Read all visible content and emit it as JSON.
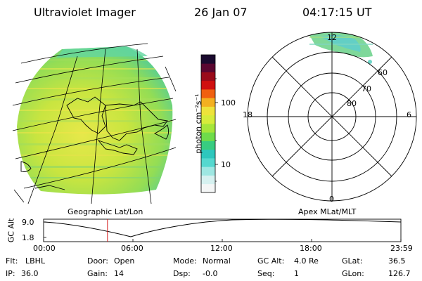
{
  "header": {
    "title": "Ultraviolet Imager",
    "date": "26 Jan 07",
    "time": "04:17:15 UT"
  },
  "left_panel": {
    "label": "Geographic Lat/Lon"
  },
  "colorbar": {
    "unit_label": "photon cm⁻²s⁻¹",
    "tick_labels": [
      "100",
      "10"
    ],
    "colors": [
      "#f4f6f6",
      "#d6f1f0",
      "#9ee7e2",
      "#55d8cf",
      "#2ec7bd",
      "#38cc80",
      "#6fdc4a",
      "#a6e63a",
      "#d6ec3b",
      "#eee33a",
      "#f3b020",
      "#f06010",
      "#d01010",
      "#9a0b1a",
      "#5a0630",
      "#1a0a2e"
    ]
  },
  "right_panel": {
    "label": "Apex MLat/MLT",
    "mlt_labels": {
      "top": "12",
      "left": "18",
      "right": "6",
      "bottom": "0"
    },
    "ring_labels": [
      "60",
      "70",
      "80"
    ]
  },
  "altitude_plot": {
    "ylabel": "GC Alt",
    "yticks": [
      "9.0",
      "1.8"
    ],
    "xticks": [
      "00:00",
      "06:00",
      "12:00",
      "18:00",
      "23:59"
    ],
    "marker_time_hours": 4.29
  },
  "status": {
    "flt_label": "Flt:",
    "flt_value": "LBHL",
    "ip_label": "IP:",
    "ip_value": "36.0",
    "door_label": "Door:",
    "door_value": "Open",
    "gain_label": "Gain:",
    "gain_value": "14",
    "mode_label": "Mode:",
    "mode_value": "Normal",
    "dsp_label": "Dsp:",
    "dsp_value": "-0.0",
    "gcalt_label": "GC Alt:",
    "gcalt_value": "4.0 Re",
    "seq_label": "Seq:",
    "seq_value": "1",
    "glat_label": "GLat:",
    "glat_value": "36.5",
    "glon_label": "GLon:",
    "glon_value": "126.7"
  }
}
